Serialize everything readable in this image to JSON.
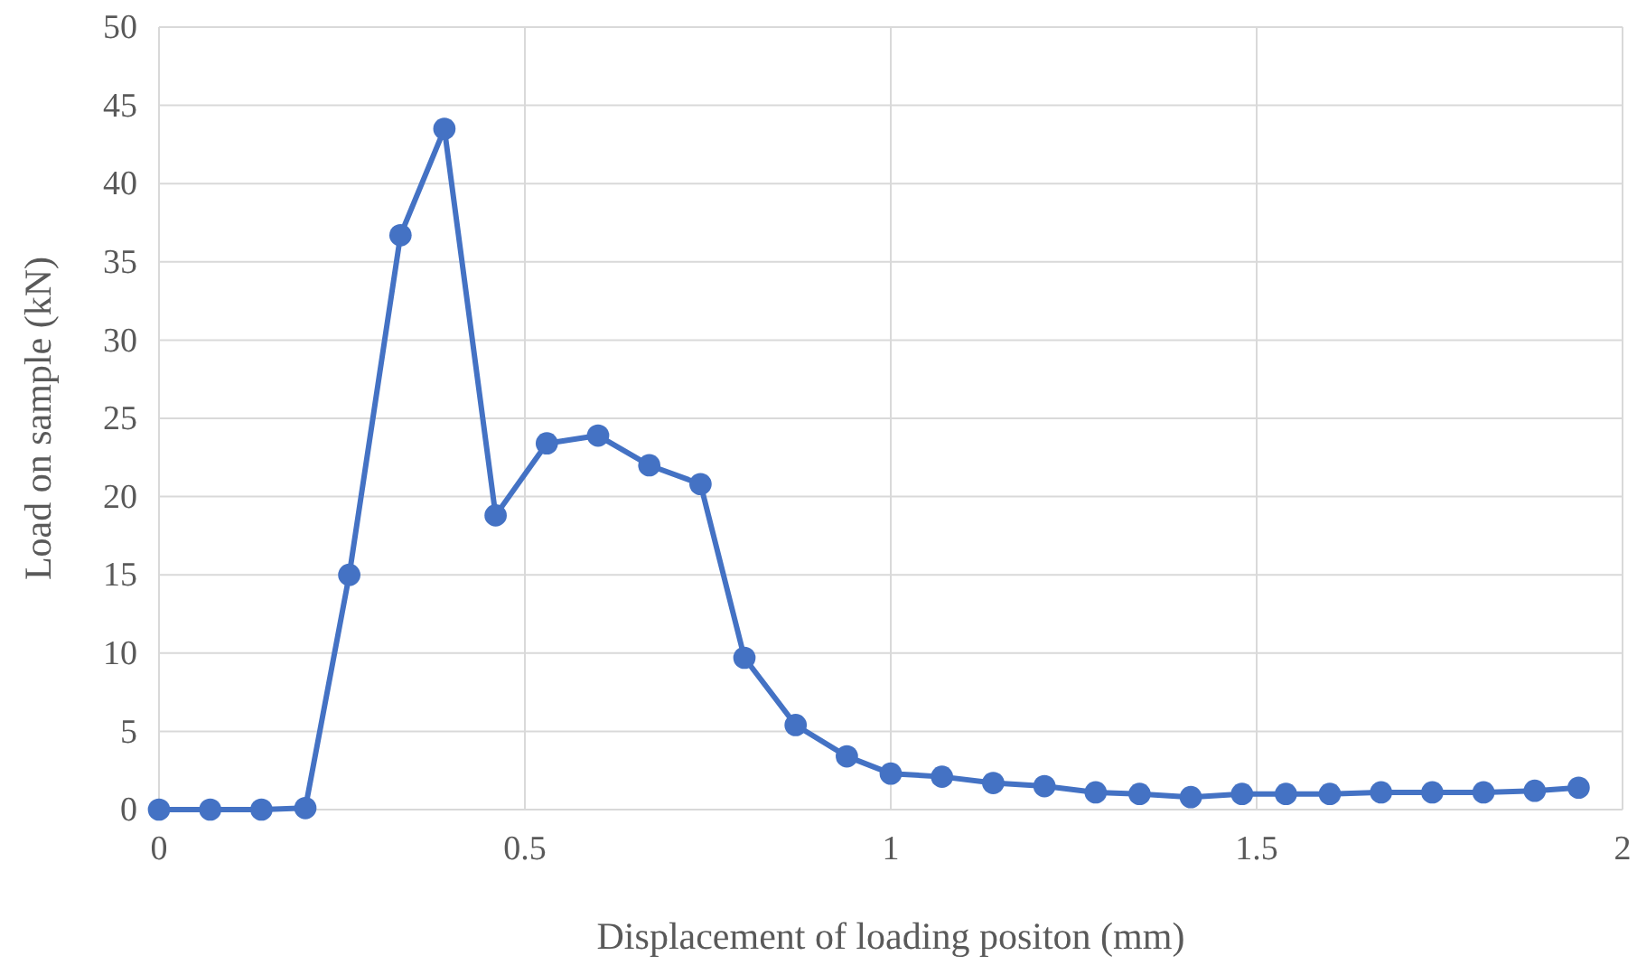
{
  "chart_data": {
    "type": "line",
    "xlabel": "Displacement of loading positon (mm)",
    "ylabel": "Load on sample (kN)",
    "x": [
      0,
      0.07,
      0.14,
      0.2,
      0.26,
      0.33,
      0.39,
      0.46,
      0.53,
      0.6,
      0.67,
      0.74,
      0.8,
      0.87,
      0.94,
      1.0,
      1.07,
      1.14,
      1.21,
      1.28,
      1.34,
      1.41,
      1.48,
      1.54,
      1.6,
      1.67,
      1.74,
      1.81,
      1.88,
      1.94
    ],
    "series": [
      {
        "color": "#4472c4",
        "values": [
          0,
          0,
          0,
          0.1,
          15,
          36.7,
          43.5,
          18.8,
          23.4,
          23.9,
          22,
          20.8,
          9.7,
          5.4,
          3.4,
          2.3,
          2.1,
          1.7,
          1.5,
          1.1,
          1.0,
          0.8,
          1.0,
          1.0,
          1.0,
          1.1,
          1.1,
          1.1,
          1.2,
          1.4
        ]
      }
    ],
    "xlim": [
      0,
      2
    ],
    "xticks": [
      0,
      0.5,
      1,
      1.5,
      2
    ],
    "ylim": [
      0,
      50
    ],
    "yticks": [
      0,
      5,
      10,
      15,
      20,
      25,
      30,
      35,
      40,
      45,
      50
    ],
    "grid": true,
    "marker": "circle",
    "line_style": "solid"
  }
}
